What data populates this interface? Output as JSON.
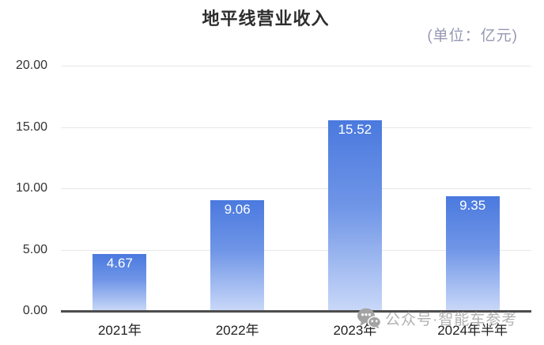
{
  "chart_data": {
    "type": "bar",
    "title": "地平线营业收入",
    "unit_label": "(单位：亿元)",
    "categories": [
      "2021年",
      "2022年",
      "2023年",
      "2024年半年"
    ],
    "values": [
      4.67,
      9.06,
      15.52,
      9.35
    ],
    "value_labels": [
      "4.67",
      "9.06",
      "15.52",
      "9.35"
    ],
    "xlabel": "",
    "ylabel": "",
    "ylim": [
      0,
      20
    ],
    "ytick_labels": [
      "20.00",
      "15.00",
      "10.00",
      "5.00",
      "0.00"
    ],
    "grid": true,
    "legend_position": "none",
    "colors": {
      "bar_gradient_top": "#4A79DE",
      "bar_gradient_bottom": "#C9D8F8",
      "value_label": "#FFFFFF",
      "axis_line": "#4D4D4D",
      "gridline": "#E7E7E7",
      "title": "#2D2D2D",
      "unit_label": "#9698B4",
      "tick_label": "#333333",
      "watermark": "#B1B1B1"
    }
  },
  "watermark": {
    "icon": "wechat-icon",
    "text": "公众号·智能车参考"
  }
}
